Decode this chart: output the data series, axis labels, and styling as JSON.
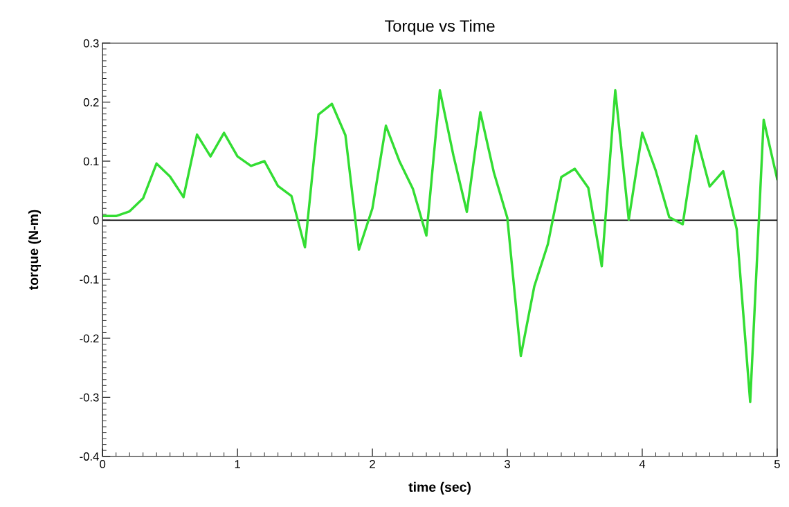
{
  "chart_data": {
    "type": "line",
    "title": "Torque vs Time",
    "xlabel": "time (sec)",
    "ylabel": "torque (N-m)",
    "x": [
      0,
      0.1,
      0.2,
      0.3,
      0.4,
      0.5,
      0.6,
      0.7,
      0.8,
      0.9,
      1.0,
      1.1,
      1.2,
      1.3,
      1.4,
      1.5,
      1.6,
      1.7,
      1.8,
      1.9,
      2.0,
      2.1,
      2.2,
      2.3,
      2.4,
      2.5,
      2.6,
      2.7,
      2.8,
      2.9,
      3.0,
      3.1,
      3.2,
      3.3,
      3.4,
      3.5,
      3.6,
      3.7,
      3.8,
      3.9,
      4.0,
      4.1,
      4.2,
      4.3,
      4.4,
      4.5,
      4.6,
      4.7,
      4.8,
      4.9,
      5.0
    ],
    "series": [
      {
        "color": "#33dd33",
        "values": [
          0.007,
          0.007,
          0.015,
          0.037,
          0.096,
          0.074,
          0.039,
          0.145,
          0.108,
          0.148,
          0.108,
          0.092,
          0.1,
          0.058,
          0.041,
          -0.046,
          0.179,
          0.197,
          0.144,
          -0.05,
          0.02,
          0.16,
          0.1,
          0.053,
          -0.026,
          0.22,
          0.11,
          0.014,
          0.183,
          0.081,
          0.004,
          -0.23,
          -0.112,
          -0.041,
          0.073,
          0.087,
          0.055,
          -0.078,
          0.22,
          0.001,
          0.148,
          0.084,
          0.005,
          -0.007,
          0.143,
          0.057,
          0.083,
          -0.015,
          -0.308,
          0.17,
          0.07
        ]
      }
    ],
    "xlim": [
      0,
      5
    ],
    "xticks": [
      0,
      1,
      2,
      3,
      4,
      5
    ],
    "ylim": [
      -0.4,
      0.3
    ],
    "yticks": [
      -0.4,
      -0.3,
      -0.2,
      -0.1,
      0,
      0.1,
      0.2,
      0.3
    ],
    "ref_lines": [
      {
        "axis": "y",
        "value": 0,
        "color": "#000000"
      }
    ],
    "grid": false,
    "marker": "none",
    "line_style": "solid"
  }
}
